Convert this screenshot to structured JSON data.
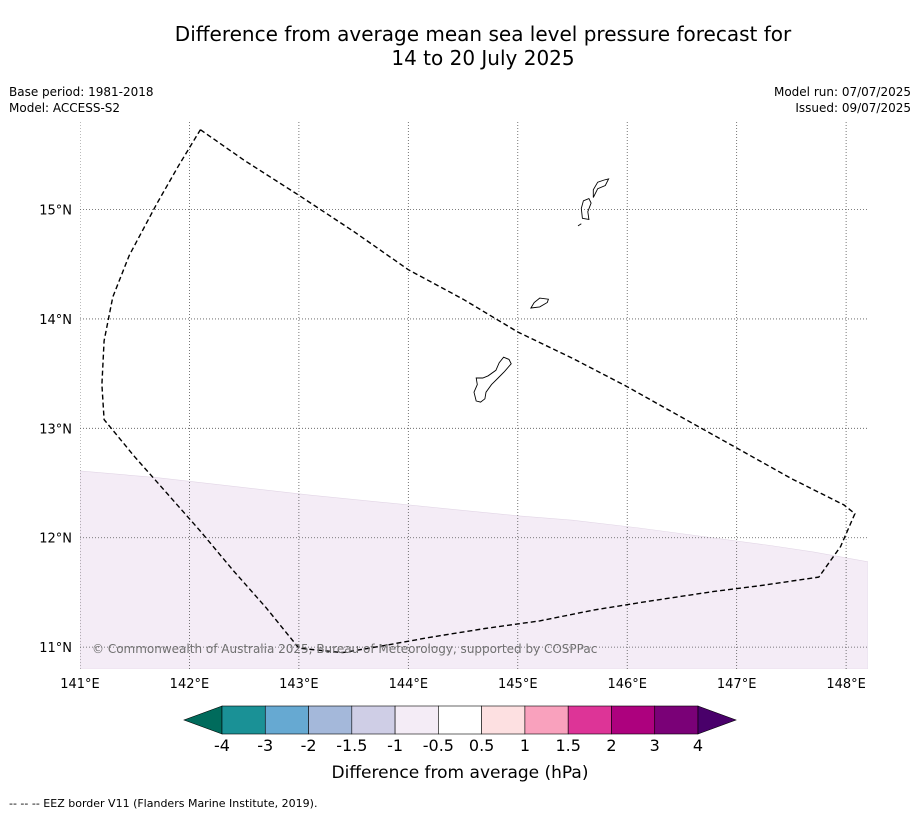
{
  "title_line1": "Difference from average mean sea level pressure forecast for",
  "title_line2": "14 to 20 July 2025",
  "meta_left": {
    "base_period": "Base period: 1981-2018",
    "model": "Model: ACCESS-S2"
  },
  "meta_right": {
    "model_run": "Model run: 07/07/2025",
    "issued": "Issued: 09/07/2025"
  },
  "copyright": "© Commonwealth of Australia 2025, Bureau of Meteorology, supported by COSPPac",
  "footer": "--  --  -- EEZ border V11 (Flanders Marine Institute, 2019).",
  "map": {
    "lon_range": [
      141.0,
      148.2
    ],
    "lat_range": [
      10.8,
      15.8
    ],
    "lon_ticks": [
      141,
      142,
      143,
      144,
      145,
      146,
      147,
      148
    ],
    "lon_tick_labels": [
      "141°E",
      "142°E",
      "143°E",
      "144°E",
      "145°E",
      "146°E",
      "147°E",
      "148°E"
    ],
    "lat_ticks": [
      11,
      12,
      13,
      14,
      15
    ],
    "lat_tick_labels": [
      "11°N",
      "12°N",
      "13°N",
      "14°N",
      "15°N"
    ],
    "shaded_region_color": "#f4ecf6",
    "shaded_region_boundary": [
      [
        141.0,
        12.61
      ],
      [
        141.7,
        12.55
      ],
      [
        142.4,
        12.47
      ],
      [
        143.1,
        12.39
      ],
      [
        143.8,
        12.32
      ],
      [
        144.4,
        12.26
      ],
      [
        145.0,
        12.2
      ],
      [
        145.5,
        12.16
      ],
      [
        146.1,
        12.09
      ],
      [
        146.7,
        12.01
      ],
      [
        147.3,
        11.93
      ],
      [
        147.7,
        11.87
      ],
      [
        148.2,
        11.78
      ]
    ],
    "eez_border": [
      [
        142.1,
        15.73
      ],
      [
        142.5,
        15.45
      ],
      [
        143.0,
        15.13
      ],
      [
        143.5,
        14.8
      ],
      [
        144.0,
        14.45
      ],
      [
        144.5,
        14.18
      ],
      [
        145.0,
        13.88
      ],
      [
        145.5,
        13.64
      ],
      [
        146.0,
        13.38
      ],
      [
        146.5,
        13.1
      ],
      [
        147.0,
        12.82
      ],
      [
        147.5,
        12.54
      ],
      [
        147.98,
        12.3
      ],
      [
        148.08,
        12.22
      ],
      [
        147.95,
        11.92
      ],
      [
        147.75,
        11.64
      ],
      [
        147.2,
        11.56
      ],
      [
        146.8,
        11.51
      ],
      [
        146.2,
        11.42
      ],
      [
        145.7,
        11.34
      ],
      [
        145.2,
        11.24
      ],
      [
        144.7,
        11.17
      ],
      [
        144.2,
        11.09
      ],
      [
        143.7,
        11.0
      ],
      [
        143.4,
        10.95
      ],
      [
        143.0,
        10.99
      ],
      [
        142.7,
        11.36
      ],
      [
        142.4,
        11.7
      ],
      [
        142.1,
        12.06
      ],
      [
        141.8,
        12.4
      ],
      [
        141.5,
        12.74
      ],
      [
        141.22,
        13.08
      ],
      [
        141.2,
        13.4
      ],
      [
        141.22,
        13.8
      ],
      [
        141.3,
        14.2
      ],
      [
        141.45,
        14.58
      ],
      [
        141.7,
        15.05
      ],
      [
        141.9,
        15.4
      ],
      [
        142.1,
        15.73
      ]
    ],
    "islands": [
      [
        [
          144.62,
          13.25
        ],
        [
          144.66,
          13.24
        ],
        [
          144.7,
          13.27
        ],
        [
          144.71,
          13.33
        ],
        [
          144.76,
          13.4
        ],
        [
          144.82,
          13.46
        ],
        [
          144.88,
          13.52
        ],
        [
          144.94,
          13.59
        ],
        [
          144.92,
          13.63
        ],
        [
          144.87,
          13.65
        ],
        [
          144.83,
          13.6
        ],
        [
          144.8,
          13.53
        ],
        [
          144.73,
          13.48
        ],
        [
          144.68,
          13.46
        ],
        [
          144.62,
          13.46
        ],
        [
          144.63,
          13.4
        ],
        [
          144.6,
          13.33
        ],
        [
          144.62,
          13.25
        ]
      ],
      [
        [
          145.12,
          14.1
        ],
        [
          145.2,
          14.11
        ],
        [
          145.27,
          14.15
        ],
        [
          145.28,
          14.18
        ],
        [
          145.2,
          14.19
        ],
        [
          145.15,
          14.15
        ],
        [
          145.12,
          14.1
        ]
      ],
      [
        [
          145.59,
          14.92
        ],
        [
          145.65,
          14.91
        ],
        [
          145.64,
          14.98
        ],
        [
          145.67,
          15.06
        ],
        [
          145.65,
          15.1
        ],
        [
          145.6,
          15.08
        ],
        [
          145.58,
          15.01
        ],
        [
          145.59,
          14.92
        ]
      ],
      [
        [
          145.69,
          15.11
        ],
        [
          145.73,
          15.19
        ],
        [
          145.8,
          15.22
        ],
        [
          145.83,
          15.28
        ],
        [
          145.79,
          15.27
        ],
        [
          145.73,
          15.25
        ],
        [
          145.69,
          15.18
        ],
        [
          145.69,
          15.11
        ]
      ],
      [
        [
          145.55,
          14.85
        ],
        [
          145.58,
          14.87
        ]
      ]
    ]
  },
  "colorbar": {
    "title": "Difference from average (hPa)",
    "labels": [
      "-4",
      "-3",
      "-2",
      "-1.5",
      "-1",
      "-0.5",
      "0.5",
      "1",
      "1.5",
      "2",
      "3",
      "4"
    ],
    "colors": [
      "#006b5c",
      "#1a9196",
      "#66a9d2",
      "#a4b8da",
      "#cfcee6",
      "#f4ecf6",
      "#ffffff",
      "#fde0e1",
      "#f9a1bd",
      "#dd3497",
      "#ad017e",
      "#7a0177",
      "#49006a"
    ]
  }
}
